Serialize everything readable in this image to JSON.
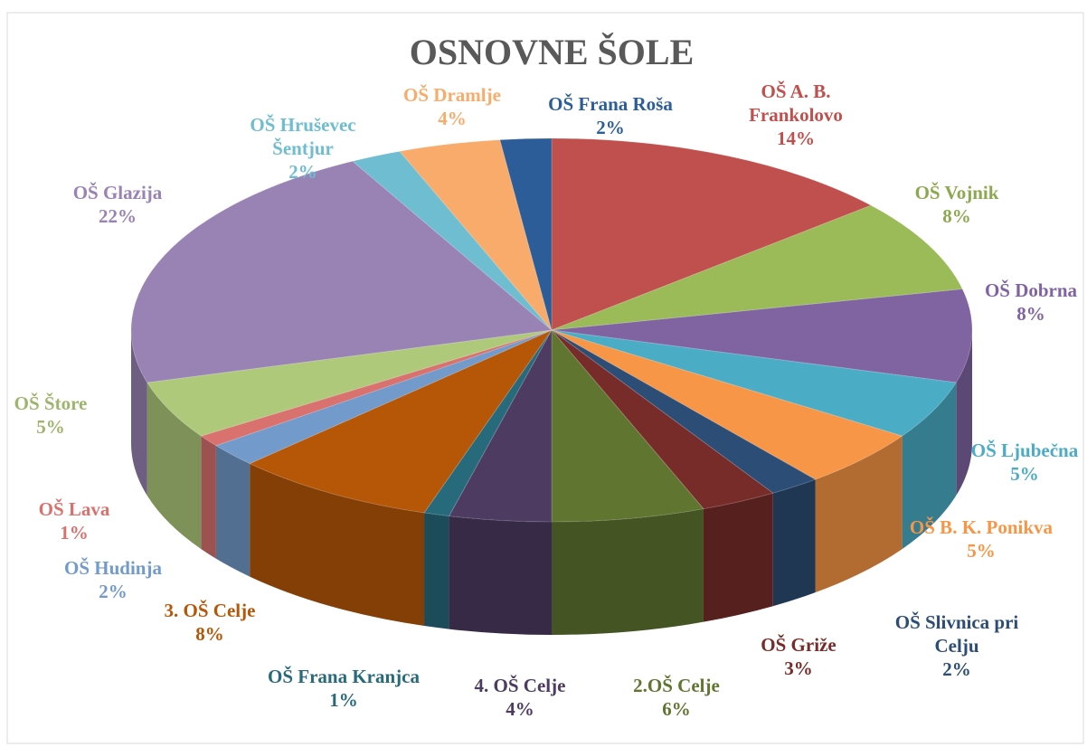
{
  "chart_data": {
    "type": "pie",
    "title": "OSNOVNE ŠOLE",
    "categories": [
      "OŠ A. B. Frankolovo",
      "OŠ Vojnik",
      "OŠ Dobrna",
      "OŠ Ljubečna",
      "OŠ  B. K. Ponikva",
      "OŠ Slivnica pri Celju",
      "OŠ Griže",
      "2.OŠ Celje",
      "4. OŠ Celje",
      "OŠ Frana Kranjca",
      "3. OŠ Celje",
      "OŠ Hudinja",
      "OŠ Lava",
      "OŠ Štore",
      "OŠ Glazija",
      "OŠ Hruševec Šentjur",
      "OŠ Dramlje",
      "OŠ Frana Roša"
    ],
    "values": [
      14,
      8,
      8,
      5,
      5,
      2,
      3,
      6,
      4,
      1,
      8,
      2,
      1,
      5,
      22,
      2,
      4,
      2
    ],
    "value_labels": [
      "14%",
      "8%",
      "8%",
      "5%",
      "5%",
      "2%",
      "3%",
      "6%",
      "4%",
      "1%",
      "8%",
      "2%",
      "1%",
      "5%",
      "22%",
      "2%",
      "4%",
      "2%"
    ],
    "colors": [
      "#c0504d",
      "#9bbb59",
      "#8064a2",
      "#4bacc6",
      "#f79646",
      "#2c4d75",
      "#772c2a",
      "#5f7530",
      "#4d3b62",
      "#276a7c",
      "#b65708",
      "#729aca",
      "#d9726f",
      "#afc97a",
      "#9983b5",
      "#6fbdd1",
      "#f9ab6b",
      "#2c5d98"
    ]
  }
}
